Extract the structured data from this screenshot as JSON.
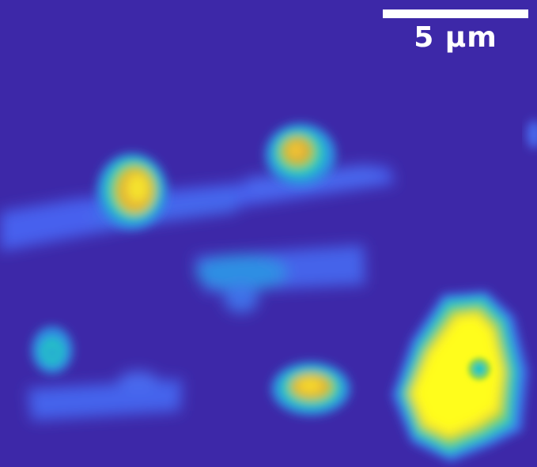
{
  "scale_bar": {
    "label": "5 µm"
  },
  "colormap": {
    "background": "#3d28a8",
    "low": "#4055e8",
    "mid_low": "#2f8fe3",
    "mid": "#20c6c0",
    "mid_high": "#7ed24e",
    "high": "#f5e22e",
    "peak": "#fffd1a"
  }
}
